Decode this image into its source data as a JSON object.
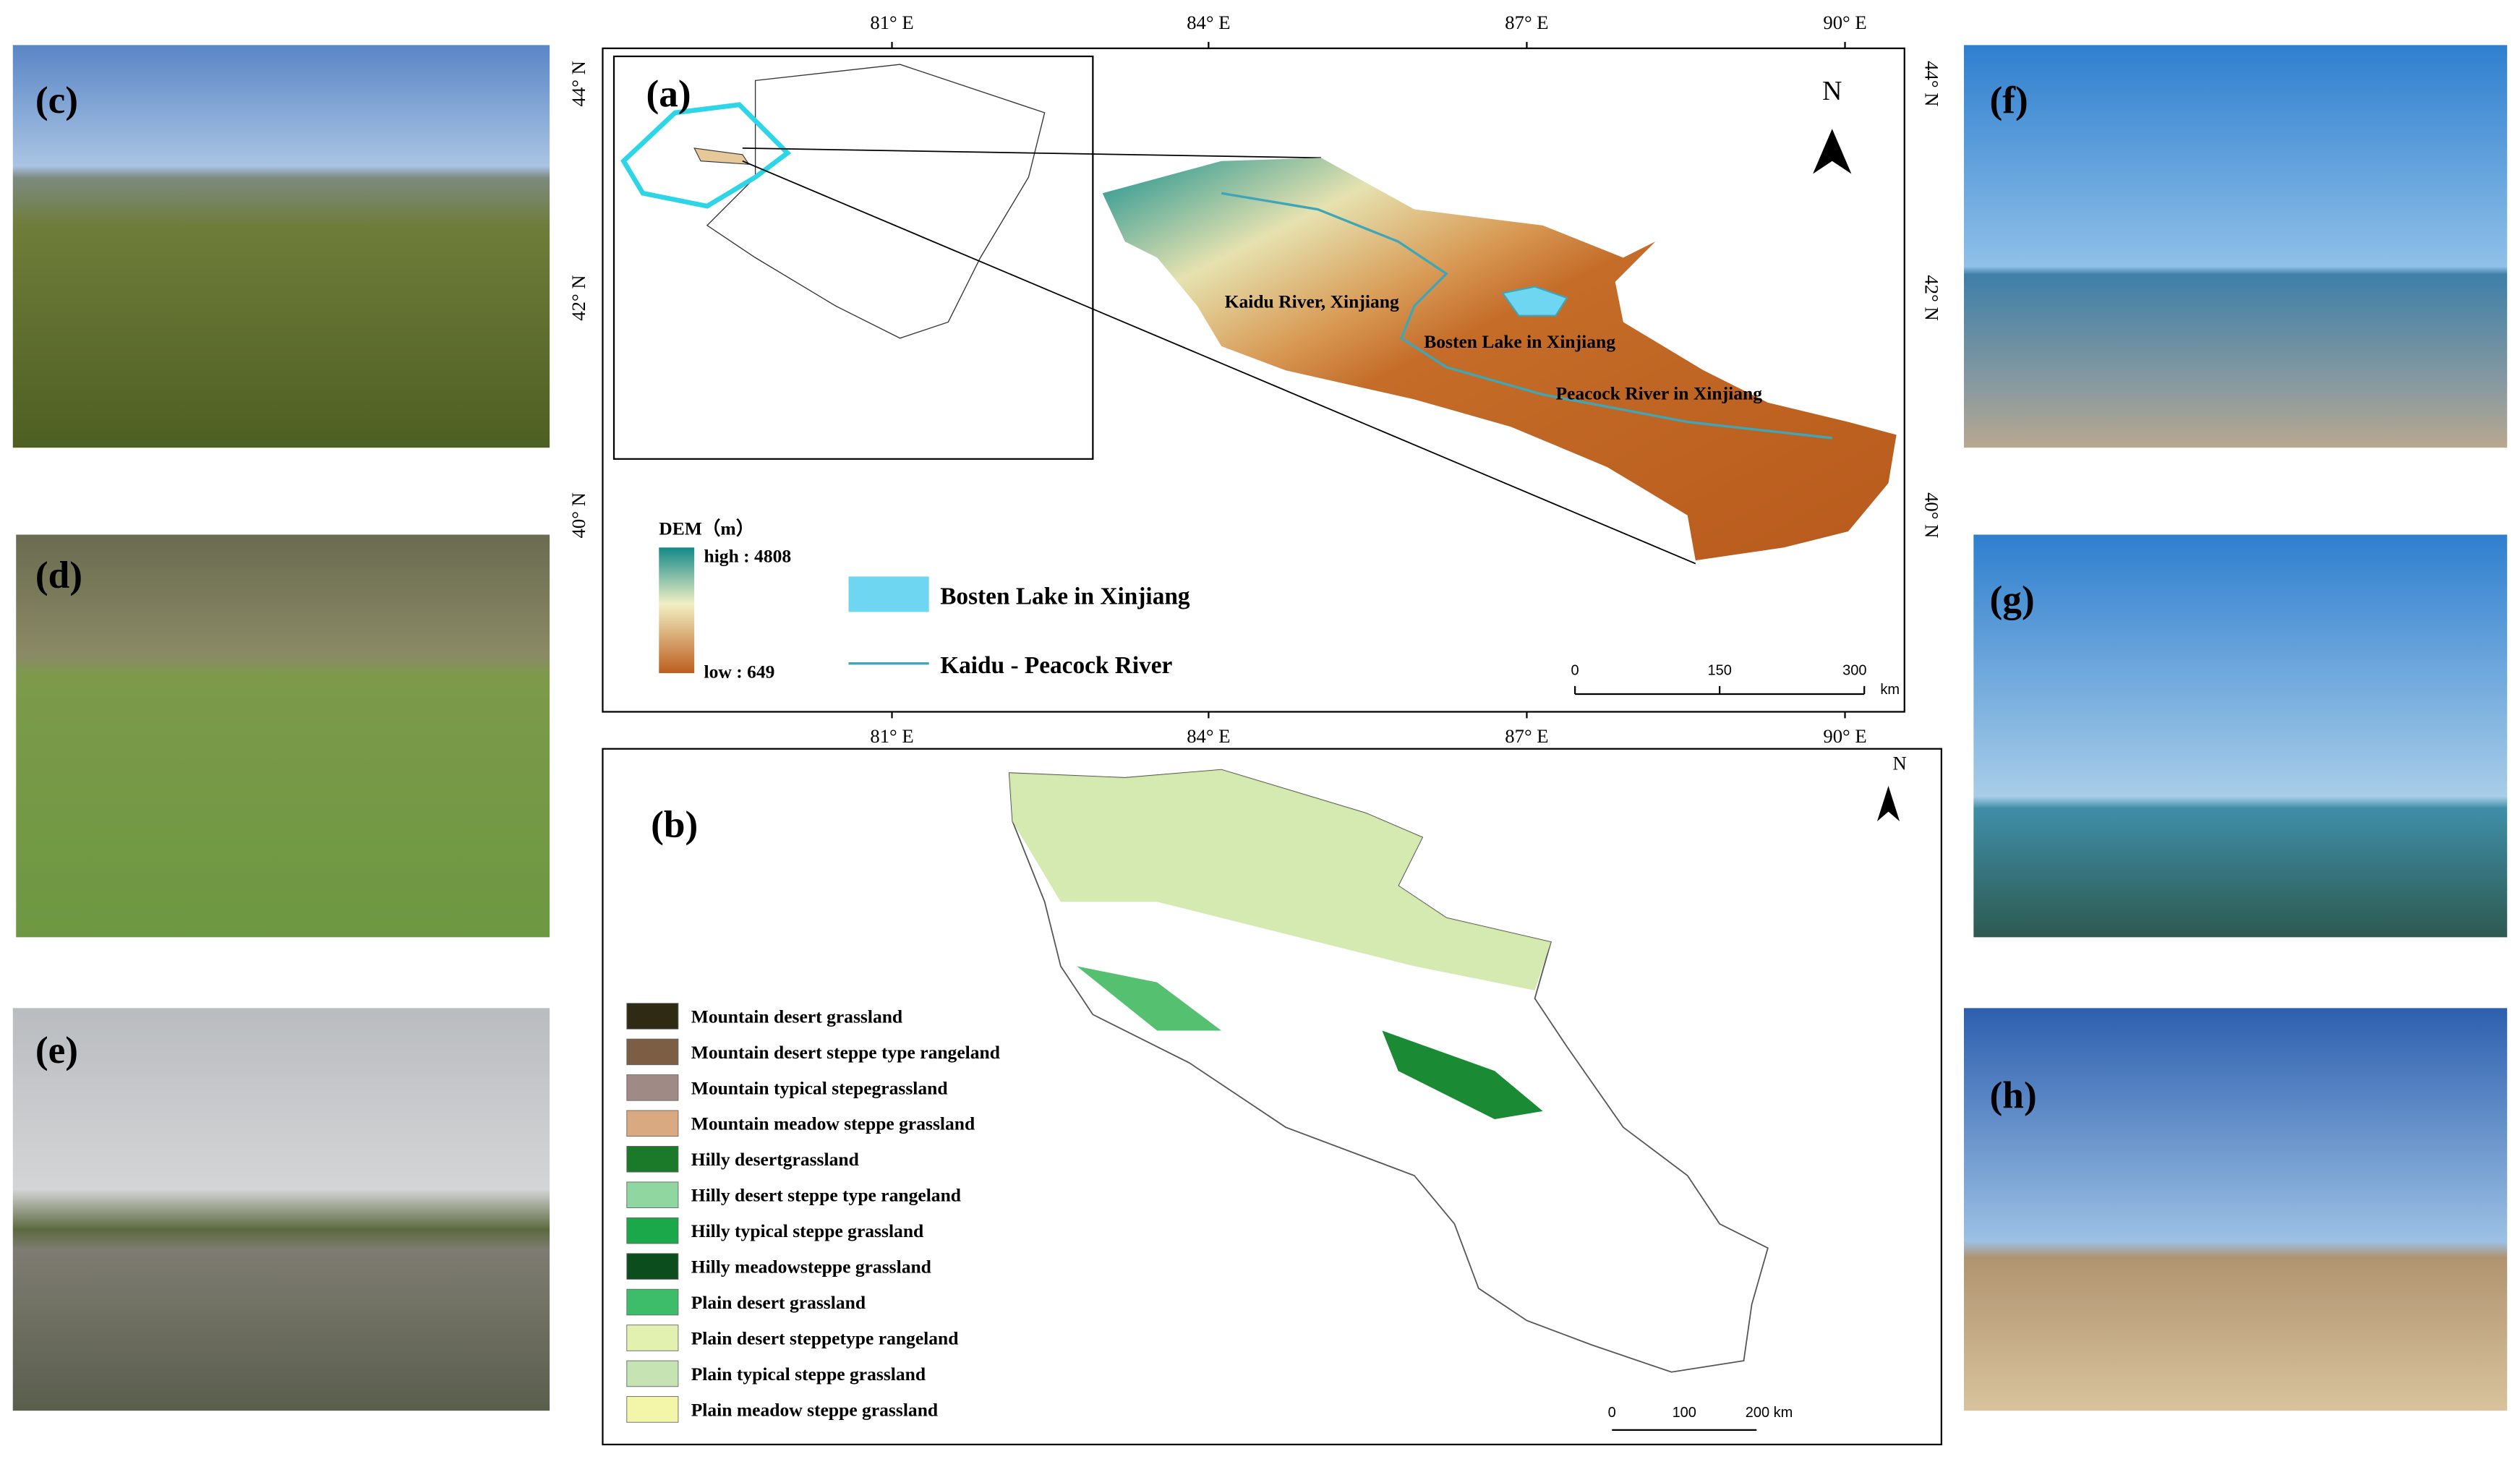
{
  "photos": [
    "(c)",
    "(d)",
    "(e)",
    "(f)",
    "(g)",
    "(h)"
  ],
  "panel_a": {
    "label": "(a)",
    "lon_ticks": [
      "81° E",
      "84° E",
      "87° E",
      "90° E"
    ],
    "lat_ticks": [
      "44° N",
      "42° N",
      "40° N"
    ],
    "north": "N",
    "dem_title": "DEM（m）",
    "dem_high": "high : 4808",
    "dem_low": "low : 649",
    "legend": [
      {
        "label": "Bosten Lake in Xinjiang",
        "color": "#6fd6f2"
      },
      {
        "label": "Kaidu - Peacock River",
        "color": "#3fa6b8"
      }
    ],
    "annotations": [
      "Kaidu River, Xinjiang",
      "Bosten Lake in Xinjiang",
      "Peacock River in Xinjiang"
    ],
    "scale": [
      "0",
      "150",
      "300",
      "km"
    ]
  },
  "panel_b": {
    "label": "(b)",
    "north": "N",
    "legend": [
      {
        "label": "Mountain desert grassland",
        "color": "#2e2a14"
      },
      {
        "label": "Mountain desert steppe type rangeland",
        "color": "#7b5e44"
      },
      {
        "label": "Mountain typical stepegrassland",
        "color": "#a08a86"
      },
      {
        "label": "Mountain meadow steppe grassland",
        "color": "#d9a982"
      },
      {
        "label": "Hilly desertgrassland",
        "color": "#1a7a2a"
      },
      {
        "label": "Hilly desert steppe type rangeland",
        "color": "#8fd6a0"
      },
      {
        "label": "Hilly typical steppe grassland",
        "color": "#1aa84a"
      },
      {
        "label": "Hilly meadowsteppe grassland",
        "color": "#0b4d1c"
      },
      {
        "label": "Plain desert grassland",
        "color": "#3dbd6a"
      },
      {
        "label": "Plain desert steppetype rangeland",
        "color": "#e3f1b0"
      },
      {
        "label": "Plain typical steppe grassland",
        "color": "#c6e3b4"
      },
      {
        "label": "Plain meadow steppe grassland",
        "color": "#f3f5a8"
      }
    ],
    "scale": [
      "0",
      "100",
      "200 km"
    ]
  }
}
